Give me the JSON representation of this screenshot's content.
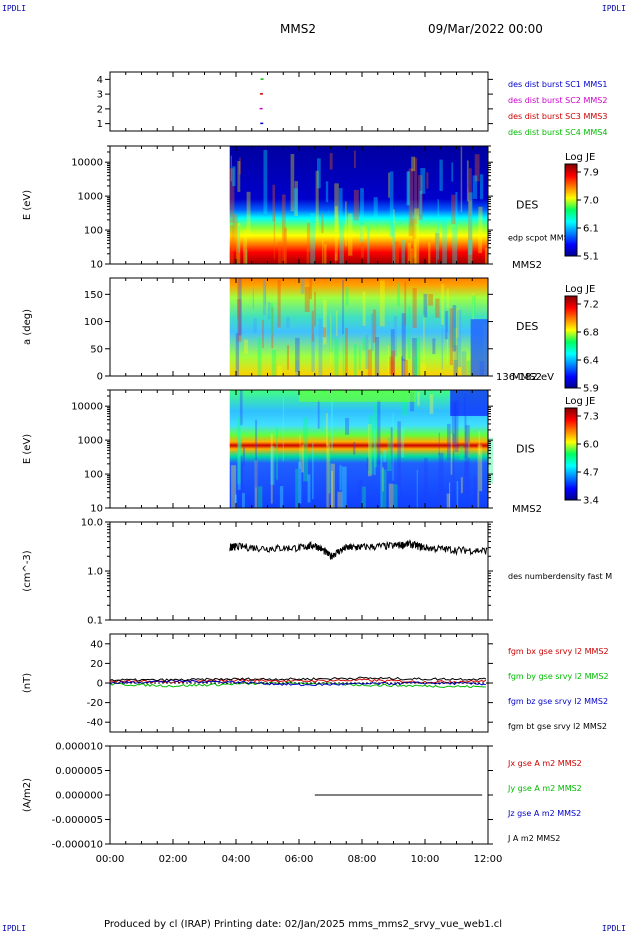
{
  "corners": {
    "tl": "IPDLI",
    "tr": "IPDLI",
    "bl": "IPDLI",
    "br": "IPDLI"
  },
  "header": {
    "spacecraft": "MMS2",
    "date": "09/Mar/2022 00:00"
  },
  "footer": {
    "text": "Produced by cl (IRAP)   Printing date: 02/Jan/2025   mms_mms2_srvy_vue_web1.cl"
  },
  "colors": {
    "blue": "#0000cc",
    "magenta": "#cc00cc",
    "red": "#cc0000",
    "green": "#00bb00",
    "black": "#000000"
  },
  "chart_data": {
    "type": "multi-panel",
    "x_axis": {
      "range": [
        "00:00",
        "12:00"
      ],
      "tick_labels": [
        "00:00",
        "02:00",
        "04:00",
        "06:00",
        "08:00",
        "10:00",
        "12:00"
      ]
    },
    "panels": [
      {
        "id": "burst",
        "type": "scatter",
        "ylim": [
          0.5,
          4.5
        ],
        "yticks": [
          "1",
          "2",
          "3",
          "4"
        ],
        "legend": [
          "des dist burst SC1 MMS1",
          "des dist burst SC2 MMS2",
          "des dist burst SC3 MMS3",
          "des dist burst SC4 MMS4"
        ],
        "points": [
          {
            "x": 4.77,
            "y": 1,
            "series": 0
          },
          {
            "x": 4.75,
            "y": 2,
            "series": 1
          },
          {
            "x": 4.76,
            "y": 3,
            "series": 2
          },
          {
            "x": 4.78,
            "y": 4,
            "series": 3
          }
        ]
      },
      {
        "id": "des_energy",
        "type": "heatmap",
        "ylabel": "E (eV)",
        "yscale": "log",
        "ylim": [
          10,
          30000
        ],
        "yticks": [
          "10",
          "100",
          "1000",
          "10000"
        ],
        "data_start": 3.8,
        "label": "DES",
        "sublabel": "MMS2",
        "overlay": "edp scpot MMS2",
        "colorbar": {
          "title": "Log JE",
          "ticks": [
            "7.9",
            "7.0",
            "6.1",
            "5.1"
          ]
        }
      },
      {
        "id": "des_pitch",
        "type": "heatmap",
        "ylabel": "a (deg)",
        "ylim": [
          0,
          180
        ],
        "yticks": [
          "0",
          "50",
          "100",
          "150"
        ],
        "data_start": 3.8,
        "label": "DES",
        "sublabel": "MMS2",
        "range_label": "136-182 eV",
        "colorbar": {
          "title": "Log JE",
          "ticks": [
            "7.2",
            "6.8",
            "6.4",
            "5.9"
          ]
        }
      },
      {
        "id": "dis_energy",
        "type": "heatmap",
        "ylabel": "E (eV)",
        "yscale": "log",
        "ylim": [
          10,
          30000
        ],
        "yticks": [
          "10",
          "100",
          "1000",
          "10000"
        ],
        "data_start": 3.8,
        "label": "DIS",
        "sublabel": "MMS2",
        "colorbar": {
          "title": "Log JE",
          "ticks": [
            "7.3",
            "6.0",
            "4.7",
            "3.4"
          ]
        }
      },
      {
        "id": "density",
        "type": "line",
        "ylabel": "(cm^-3)",
        "yscale": "log",
        "ylim": [
          0.1,
          10
        ],
        "yticks": [
          "0.1",
          "1.0",
          "10.0"
        ],
        "legend": [
          "des numberdensity fast M"
        ],
        "series": [
          {
            "x": [
              3.8,
              4.0,
              5.0,
              6.0,
              6.5,
              7.0,
              7.5,
              8.0,
              9.0,
              9.5,
              10.0,
              11.0,
              12.0
            ],
            "values": [
              3.0,
              3.2,
              2.9,
              3.0,
              3.4,
              2.0,
              3.0,
              3.1,
              3.3,
              3.6,
              3.0,
              2.7,
              2.6
            ]
          }
        ]
      },
      {
        "id": "fgm",
        "type": "line",
        "ylabel": "(nT)",
        "ylim": [
          -50,
          50
        ],
        "yticks": [
          "-40",
          "-20",
          "0",
          "20",
          "40"
        ],
        "legend": [
          "fgm bx gse srvy l2 MMS2",
          "fgm by gse srvy l2 MMS2",
          "fgm bz gse srvy l2 MMS2",
          "fgm bt gse srvy l2 MMS2"
        ],
        "series": [
          {
            "x": [
              0,
              2,
              4,
              6,
              8,
              10,
              12
            ],
            "values": [
              2,
              1,
              3,
              2,
              3,
              1,
              2
            ]
          },
          {
            "x": [
              0,
              2,
              4,
              6,
              8,
              10,
              12
            ],
            "values": [
              -1,
              -3,
              -1,
              0,
              -2,
              -3,
              -4
            ]
          },
          {
            "x": [
              0,
              2,
              4,
              6,
              8,
              10,
              12
            ],
            "values": [
              0,
              2,
              1,
              -2,
              -1,
              0,
              -1
            ]
          },
          {
            "x": [
              0,
              2,
              4,
              6,
              8,
              10,
              12
            ],
            "values": [
              3,
              3,
              4,
              4,
              5,
              4,
              4
            ]
          }
        ]
      },
      {
        "id": "current",
        "type": "line",
        "ylabel": "(A/m2)",
        "ylim": [
          -1e-05,
          1e-05
        ],
        "yticks": [
          "-0.000010",
          "-0.000005",
          "0.000000",
          "0.000005",
          "0.000010"
        ],
        "legend": [
          "Jx gse A m2 MMS2",
          "Jy gse A m2 MMS2",
          "Jz gse A m2 MMS2",
          "J A m2 MMS2"
        ],
        "series": [
          {
            "x": [
              6.5,
              12
            ],
            "values": [
              0,
              0
            ]
          }
        ]
      }
    ]
  }
}
